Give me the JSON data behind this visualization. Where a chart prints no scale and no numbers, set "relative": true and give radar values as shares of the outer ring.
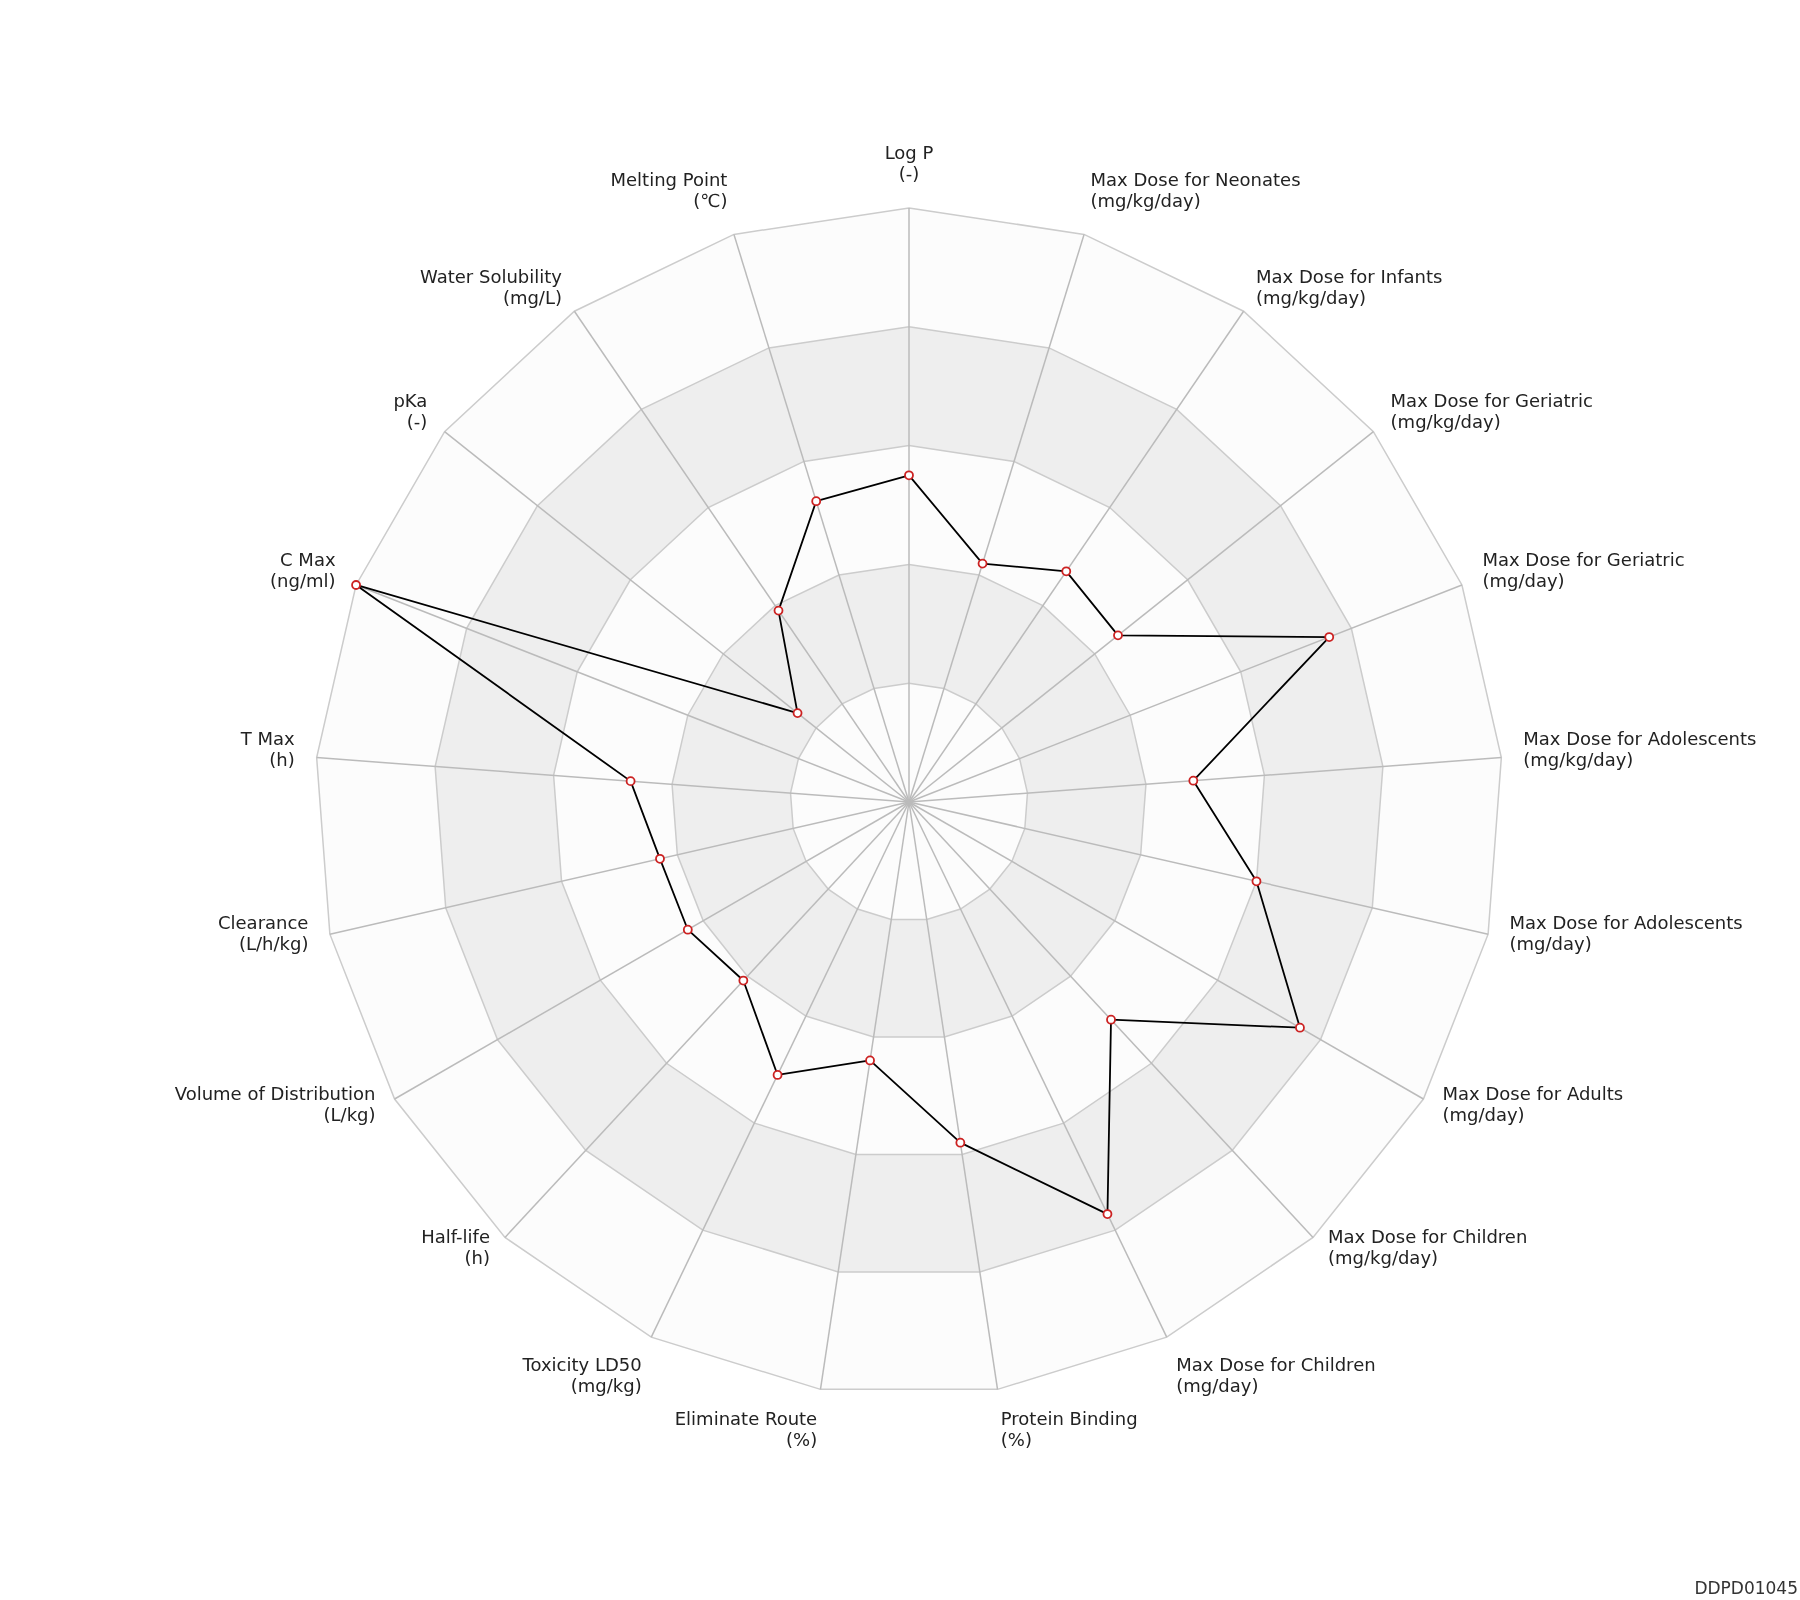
{
  "chart_data": {
    "type": "radar",
    "relative": true,
    "marker": "circle",
    "categories": [
      "Log P\n(-)",
      "Max Dose for Neonates\n(mg/kg/day)",
      "Max Dose for Infants\n(mg/kg/day)",
      "Max Dose for Geriatric\n(mg/kg/day)",
      "Max Dose for Geriatric\n(mg/day)",
      "Max Dose for Adolescents\n(mg/kg/day)",
      "Max Dose for Adolescents\n(mg/day)",
      "Max Dose for Adults\n(mg/day)",
      "Max Dose for Children\n(mg/kg/day)",
      "Max Dose for Children\n(mg/day)",
      "Protein Binding\n(%)",
      "Eliminate Route\n(%)",
      "Toxicity LD50\n(mg/kg)",
      "Half-life\n(h)",
      "Volume of Distribution\n(L/kg)",
      "Clearance\n(L/h/kg)",
      "T Max\n(h)",
      "C Max\n(ng/ml)",
      "pKa\n(-)",
      "Water Solubility\n(mg/L)",
      "Melting Point\n(℃)"
    ],
    "series": [
      {
        "color": "#000000",
        "values": [
          0.55,
          0.42,
          0.47,
          0.45,
          0.76,
          0.48,
          0.6,
          0.76,
          0.5,
          0.77,
          0.58,
          0.44,
          0.51,
          0.41,
          0.43,
          0.43,
          0.47,
          1.0,
          0.24,
          0.39,
          0.53
        ]
      }
    ],
    "annotations": [
      "DDPD01045"
    ]
  }
}
